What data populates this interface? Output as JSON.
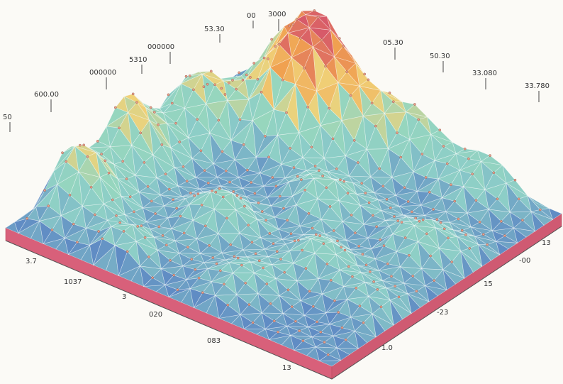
{
  "peak_labels": [
    "50",
    "600.00",
    "000000",
    "5310",
    "000000",
    "53.30",
    "00",
    "3000",
    "05.30",
    "50.30",
    "33.080",
    "33.780"
  ],
  "left_edge_labels": [
    "3.7",
    "1037",
    "3",
    "020",
    "083",
    "13"
  ],
  "right_edge_labels": [
    "13",
    "-00",
    "15",
    "-23",
    "1.0"
  ]
}
